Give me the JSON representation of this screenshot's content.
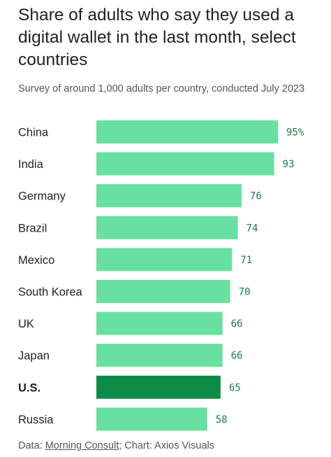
{
  "header": {
    "title": "Share of adults who say they used a digital wallet in the last month, select countries",
    "subtitle": "Survey of around 1,000 adults per country, conducted July 2023"
  },
  "footer": {
    "data_prefix": "Data: ",
    "data_source": "Morning Consult",
    "chart_credit": "; Chart: Axios Visuals"
  },
  "colors": {
    "bar": "#68e0a2",
    "highlight_bar": "#0a8c47",
    "value_text": "#1a7a4a"
  },
  "chart_data": {
    "type": "bar",
    "orientation": "horizontal",
    "title": "Share of adults who say they used a digital wallet in the last month, select countries",
    "subtitle": "Survey of around 1,000 adults per country, conducted July 2023",
    "categories": [
      "China",
      "India",
      "Germany",
      "Brazil",
      "Mexico",
      "South Korea",
      "UK",
      "Japan",
      "U.S.",
      "Russia"
    ],
    "values": [
      95,
      93,
      76,
      74,
      71,
      70,
      66,
      66,
      65,
      58
    ],
    "value_labels": [
      "95%",
      "93",
      "76",
      "74",
      "71",
      "70",
      "66",
      "66",
      "65",
      "58"
    ],
    "highlight": "U.S.",
    "xlim": [
      0,
      100
    ],
    "grid": false,
    "legend": "none"
  }
}
